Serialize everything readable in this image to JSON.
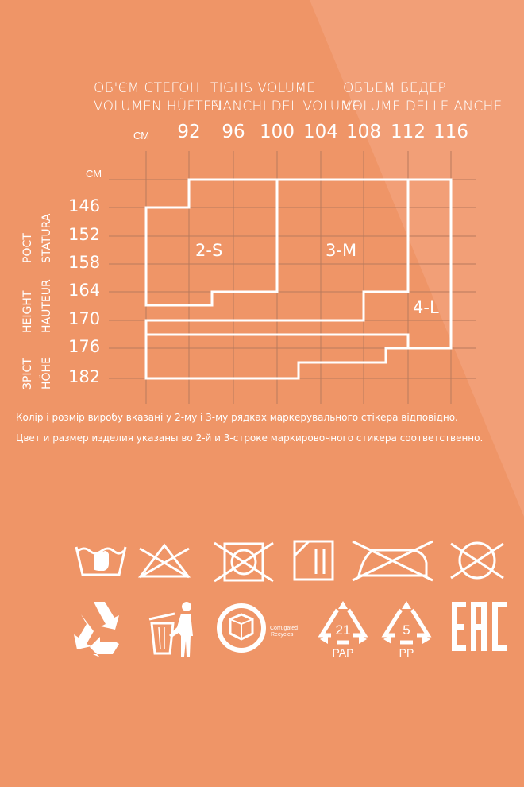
{
  "header": {
    "col1_line1": "ОБ'ЄМ СТЕГОН",
    "col1_line2": "VOLUMEN HÜFTEN",
    "col2_line1": "TIGHS VOLUME",
    "col2_line2": "FIANCHI DEL VOLUME",
    "col3_line1": "ОБЪЕМ БЕДЕР",
    "col3_line2": "VOLUME DELLE ANCHE"
  },
  "chart_data": {
    "type": "table",
    "x_unit": "СМ",
    "y_unit": "СМ",
    "x_ticks": [
      "92",
      "96",
      "100",
      "104",
      "108",
      "112",
      "116"
    ],
    "y_ticks": [
      "146",
      "152",
      "158",
      "164",
      "170",
      "176",
      "182"
    ],
    "y_labels": [
      "РОСТ",
      "STATURA",
      "HEIGHT",
      "HAUTEUR",
      "ЗРІСТ",
      "HÖHE"
    ],
    "regions": [
      {
        "label": "2-S"
      },
      {
        "label": "3-M"
      },
      {
        "label": "4-L"
      }
    ]
  },
  "notes": {
    "line1": "Колір і розмір виробу вказані у 2-му і 3-му рядках маркерувального стікера відповідно.",
    "line2": "Цвет и размер изделия указаны во 2-й и 3-строке маркировочного стикера соответственно."
  },
  "icons": {
    "row1": [
      "hand-wash-icon",
      "do-not-bleach-icon",
      "do-not-tumble-dry-icon",
      "dry-flat-icon",
      "do-not-iron-icon",
      "do-not-dry-clean-icon"
    ],
    "row2": [
      "recycle-icon",
      "dispose-in-bin-icon",
      "corrugated-recycles-icon",
      "pap-21-icon",
      "pp-5-icon",
      "eac-mark-icon"
    ],
    "corrugated_text1": "Corrugated",
    "corrugated_text2": "Recycles",
    "pap_number": "21",
    "pap_label": "PAP",
    "pp_number": "5",
    "pp_label": "PP",
    "eac_label": "EAC"
  },
  "colors": {
    "background": "#ef9567",
    "foreground": "#ffffff",
    "grid": "#b87a5c"
  }
}
